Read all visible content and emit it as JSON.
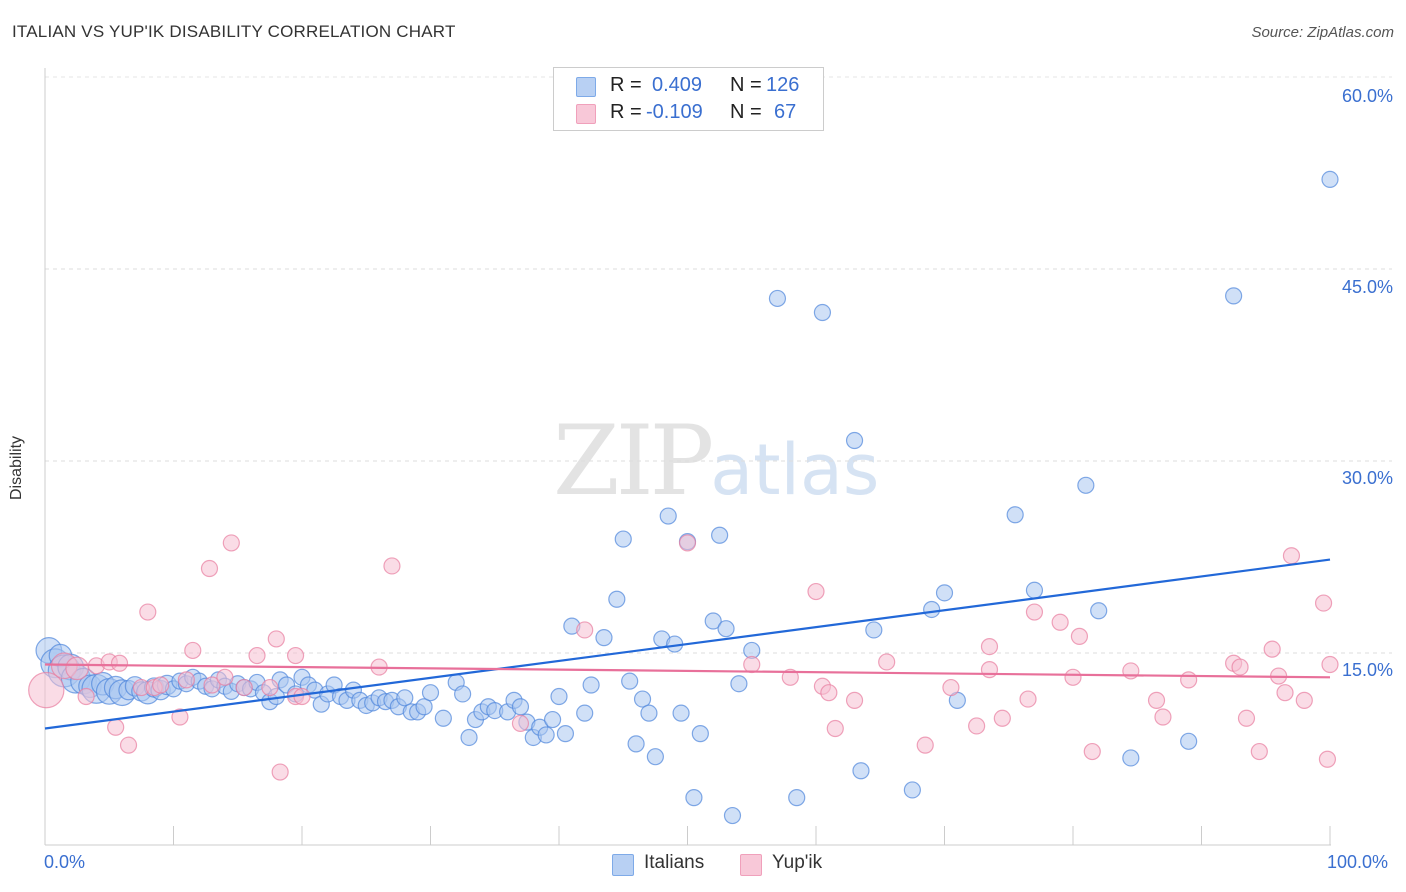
{
  "title": "ITALIAN VS YUP'IK DISABILITY CORRELATION CHART",
  "source": "Source: ZipAtlas.com",
  "watermark": {
    "zip": "ZIP",
    "atlas": "atlas"
  },
  "legend": {
    "r_label": "R =",
    "n_label": "N =",
    "rows": [
      {
        "name": "Italians",
        "r": "0.409",
        "n": "126",
        "color": "#7eaae8",
        "fill": "#b8d0f3"
      },
      {
        "name": "Yup'ik",
        "r": "-0.109",
        "n": "67",
        "color": "#f0a0bb",
        "fill": "#f8c8d8"
      }
    ]
  },
  "chart_data": {
    "type": "scatter",
    "title": "ITALIAN VS YUP'IK DISABILITY CORRELATION CHART",
    "xlabel": "",
    "ylabel": "Disability",
    "xlim": [
      0,
      100
    ],
    "ylim": [
      0,
      60
    ],
    "x_tick_labels": [
      "0.0%",
      "100.0%"
    ],
    "y_tick_labels": [
      "15.0%",
      "30.0%",
      "45.0%",
      "60.0%"
    ],
    "y_ticks": [
      15,
      30,
      45,
      60
    ],
    "grid": "horizontal dashed",
    "legend_position": "top-center",
    "series": [
      {
        "name": "Italians",
        "color": "#4f86dc",
        "fill": "#a9c7f0",
        "trend": [
          [
            0,
            9.1
          ],
          [
            100,
            22.3
          ]
        ],
        "points": [
          [
            0.3,
            15.2,
            16
          ],
          [
            0.8,
            14.2,
            18
          ],
          [
            1.2,
            14.8,
            14
          ],
          [
            1.5,
            13.6,
            20
          ],
          [
            2.0,
            13.9,
            16
          ],
          [
            2.4,
            13.0,
            18
          ],
          [
            3.0,
            12.8,
            16
          ],
          [
            3.5,
            12.4,
            14
          ],
          [
            4.0,
            12.2,
            18
          ],
          [
            4.5,
            12.6,
            14
          ],
          [
            5.0,
            12.0,
            16
          ],
          [
            5.5,
            12.3,
            14
          ],
          [
            6.0,
            11.9,
            16
          ],
          [
            6.5,
            12.1,
            12
          ],
          [
            7.0,
            12.4,
            12
          ],
          [
            7.5,
            12.0,
            12
          ],
          [
            8.0,
            11.9,
            14
          ],
          [
            8.5,
            12.3,
            12
          ],
          [
            9.0,
            12.1,
            12
          ],
          [
            9.5,
            12.5,
            12
          ],
          [
            10.0,
            12.2,
            10
          ],
          [
            10.5,
            12.8,
            10
          ],
          [
            11.0,
            12.6,
            10
          ],
          [
            11.5,
            13.1,
            10
          ],
          [
            12.0,
            12.8,
            10
          ],
          [
            12.5,
            12.4,
            10
          ],
          [
            13.0,
            12.2,
            10
          ],
          [
            13.5,
            12.9,
            10
          ],
          [
            14.0,
            12.4,
            10
          ],
          [
            14.5,
            12.0,
            10
          ],
          [
            15.0,
            12.6,
            10
          ],
          [
            15.5,
            12.3,
            10
          ],
          [
            16.0,
            12.2,
            10
          ],
          [
            16.5,
            12.7,
            10
          ],
          [
            17.0,
            11.9,
            10
          ],
          [
            17.5,
            11.2,
            10
          ],
          [
            18.0,
            11.6,
            10
          ],
          [
            18.3,
            12.9,
            10
          ],
          [
            18.8,
            12.5,
            10
          ],
          [
            19.5,
            11.8,
            10
          ],
          [
            20.0,
            13.1,
            10
          ],
          [
            20.5,
            12.5,
            10
          ],
          [
            21.0,
            12.1,
            10
          ],
          [
            21.5,
            11.0,
            10
          ],
          [
            22.0,
            11.8,
            10
          ],
          [
            22.5,
            12.5,
            10
          ],
          [
            23.0,
            11.6,
            10
          ],
          [
            23.5,
            11.3,
            10
          ],
          [
            24.0,
            12.1,
            10
          ],
          [
            24.5,
            11.3,
            10
          ],
          [
            25.0,
            10.9,
            10
          ],
          [
            25.5,
            11.1,
            10
          ],
          [
            26.0,
            11.5,
            10
          ],
          [
            26.5,
            11.2,
            10
          ],
          [
            27.0,
            11.3,
            10
          ],
          [
            27.5,
            10.8,
            10
          ],
          [
            28.0,
            11.5,
            10
          ],
          [
            28.5,
            10.4,
            10
          ],
          [
            29.0,
            10.4,
            10
          ],
          [
            29.5,
            10.8,
            10
          ],
          [
            30.0,
            11.9,
            10
          ],
          [
            31.0,
            9.9,
            10
          ],
          [
            32.0,
            12.7,
            10
          ],
          [
            32.5,
            11.8,
            10
          ],
          [
            33.0,
            8.4,
            10
          ],
          [
            33.5,
            9.8,
            10
          ],
          [
            34.0,
            10.4,
            10
          ],
          [
            34.5,
            10.8,
            10
          ],
          [
            35.0,
            10.5,
            10
          ],
          [
            36.0,
            10.4,
            10
          ],
          [
            36.5,
            11.3,
            10
          ],
          [
            37.0,
            10.8,
            10
          ],
          [
            37.5,
            9.6,
            10
          ],
          [
            38.0,
            8.4,
            10
          ],
          [
            38.5,
            9.2,
            10
          ],
          [
            39.0,
            8.6,
            10
          ],
          [
            39.5,
            9.8,
            10
          ],
          [
            40.0,
            11.6,
            10
          ],
          [
            40.5,
            8.7,
            10
          ],
          [
            41.0,
            17.1,
            10
          ],
          [
            42.0,
            10.3,
            10
          ],
          [
            42.5,
            12.5,
            10
          ],
          [
            43.5,
            16.2,
            10
          ],
          [
            44.5,
            19.2,
            10
          ],
          [
            45.0,
            23.9,
            10
          ],
          [
            45.5,
            12.8,
            10
          ],
          [
            46.0,
            7.9,
            10
          ],
          [
            46.5,
            11.4,
            10
          ],
          [
            47.0,
            10.3,
            10
          ],
          [
            47.5,
            6.9,
            10
          ],
          [
            48.0,
            16.1,
            10
          ],
          [
            48.5,
            25.7,
            10
          ],
          [
            49.0,
            15.7,
            10
          ],
          [
            49.5,
            10.3,
            10
          ],
          [
            50.0,
            23.7,
            10
          ],
          [
            50.5,
            3.7,
            10
          ],
          [
            51.0,
            8.7,
            10
          ],
          [
            52.0,
            17.5,
            10
          ],
          [
            52.5,
            24.2,
            10
          ],
          [
            53.0,
            16.9,
            10
          ],
          [
            53.5,
            2.3,
            10
          ],
          [
            54.0,
            12.6,
            10
          ],
          [
            55.0,
            15.2,
            10
          ],
          [
            57.0,
            42.7,
            10
          ],
          [
            58.5,
            3.7,
            10
          ],
          [
            60.5,
            41.6,
            10
          ],
          [
            63.0,
            31.6,
            10
          ],
          [
            63.5,
            5.8,
            10
          ],
          [
            64.5,
            16.8,
            10
          ],
          [
            67.5,
            4.3,
            10
          ],
          [
            69.0,
            18.4,
            10
          ],
          [
            70.0,
            19.7,
            10
          ],
          [
            71.0,
            11.3,
            10
          ],
          [
            75.5,
            25.8,
            10
          ],
          [
            77.0,
            19.9,
            10
          ],
          [
            81.0,
            28.1,
            10
          ],
          [
            82.0,
            18.3,
            10
          ],
          [
            84.5,
            6.8,
            10
          ],
          [
            89.0,
            8.1,
            10
          ],
          [
            92.5,
            42.9,
            10
          ],
          [
            100.0,
            52.0,
            10
          ]
        ]
      },
      {
        "name": "Yup'ik",
        "color": "#e87ea0",
        "fill": "#f6bfd1",
        "trend": [
          [
            0,
            14.1
          ],
          [
            100,
            13.1
          ]
        ],
        "points": [
          [
            0.1,
            12.1,
            22
          ],
          [
            1.5,
            14.0,
            16
          ],
          [
            2.5,
            13.8,
            14
          ],
          [
            3.2,
            11.6,
            10
          ],
          [
            4.0,
            14.0,
            10
          ],
          [
            5.0,
            14.3,
            10
          ],
          [
            5.5,
            9.2,
            10
          ],
          [
            5.8,
            14.2,
            10
          ],
          [
            6.5,
            7.8,
            10
          ],
          [
            7.5,
            12.3,
            10
          ],
          [
            8.0,
            18.2,
            10
          ],
          [
            8.5,
            12.3,
            10
          ],
          [
            9.0,
            12.5,
            10
          ],
          [
            10.5,
            10.0,
            10
          ],
          [
            11.0,
            12.9,
            10
          ],
          [
            11.5,
            15.2,
            10
          ],
          [
            12.8,
            21.6,
            10
          ],
          [
            13.0,
            12.5,
            10
          ],
          [
            14.0,
            13.1,
            10
          ],
          [
            14.5,
            23.6,
            10
          ],
          [
            15.5,
            12.3,
            10
          ],
          [
            16.5,
            14.8,
            10
          ],
          [
            17.5,
            12.3,
            10
          ],
          [
            18.0,
            16.1,
            10
          ],
          [
            19.5,
            14.8,
            10
          ],
          [
            18.3,
            5.7,
            10
          ],
          [
            19.5,
            11.6,
            10
          ],
          [
            20.0,
            11.6,
            10
          ],
          [
            26.0,
            13.9,
            10
          ],
          [
            27.0,
            21.8,
            10
          ],
          [
            37.0,
            9.5,
            10
          ],
          [
            42.0,
            16.8,
            10
          ],
          [
            50.0,
            23.6,
            10
          ],
          [
            55.0,
            14.1,
            10
          ],
          [
            58.0,
            13.1,
            10
          ],
          [
            60.0,
            19.8,
            10
          ],
          [
            60.5,
            12.4,
            10
          ],
          [
            61.0,
            11.9,
            10
          ],
          [
            61.5,
            9.1,
            10
          ],
          [
            63.0,
            11.3,
            10
          ],
          [
            65.5,
            14.3,
            10
          ],
          [
            68.5,
            7.8,
            10
          ],
          [
            70.5,
            12.3,
            10
          ],
          [
            72.5,
            9.3,
            10
          ],
          [
            73.5,
            13.7,
            10
          ],
          [
            73.5,
            15.5,
            10
          ],
          [
            74.5,
            9.9,
            10
          ],
          [
            76.5,
            11.4,
            10
          ],
          [
            77.0,
            18.2,
            10
          ],
          [
            79.0,
            17.4,
            10
          ],
          [
            80.0,
            13.1,
            10
          ],
          [
            80.5,
            16.3,
            10
          ],
          [
            81.5,
            7.3,
            10
          ],
          [
            84.5,
            13.6,
            10
          ],
          [
            86.5,
            11.3,
            10
          ],
          [
            87.0,
            10.0,
            10
          ],
          [
            89.0,
            12.9,
            10
          ],
          [
            92.5,
            14.2,
            10
          ],
          [
            93.0,
            13.9,
            10
          ],
          [
            93.5,
            9.9,
            10
          ],
          [
            94.5,
            7.3,
            10
          ],
          [
            95.5,
            15.3,
            10
          ],
          [
            96.0,
            13.2,
            10
          ],
          [
            96.5,
            11.9,
            10
          ],
          [
            97.0,
            22.6,
            10
          ],
          [
            98.0,
            11.3,
            10
          ],
          [
            99.5,
            18.9,
            10
          ],
          [
            99.8,
            6.7,
            10
          ],
          [
            100.0,
            14.1,
            10
          ]
        ]
      }
    ]
  }
}
